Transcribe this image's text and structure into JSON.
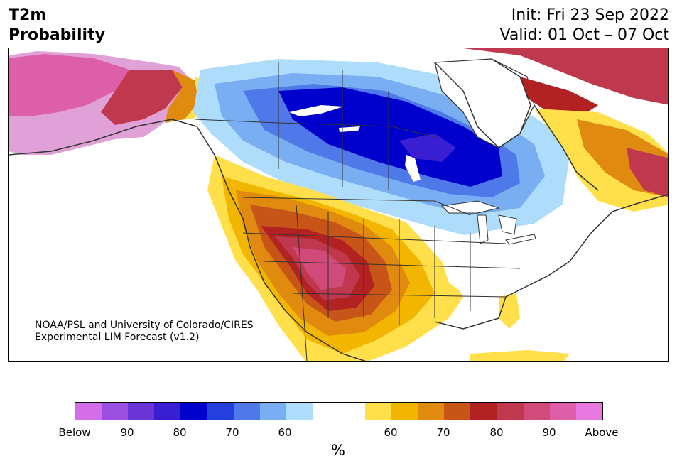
{
  "title": {
    "left_line1": "T2m",
    "left_line2": "Probability",
    "init": "Init: Fri 23 Sep 2022",
    "valid": "Valid: 01 Oct – 07 Oct"
  },
  "credit": {
    "line1": "NOAA/PSL and University of Colorado/CIRES",
    "line2": "Experimental LIM Forecast (v1.2)"
  },
  "colorbar": {
    "unit": "%",
    "colors": [
      "#d46ee8",
      "#9a4fe0",
      "#6a35d6",
      "#3a1fd2",
      "#0000cc",
      "#2540dc",
      "#4f78e8",
      "#79aef2",
      "#aedcfb",
      "#ffffff",
      "#ffffff",
      "#ffe04a",
      "#f2b600",
      "#e08a10",
      "#c85518",
      "#b22222",
      "#c0384e",
      "#d04a7a",
      "#dc5fa8",
      "#e878e0"
    ],
    "tick_labels": [
      "Below",
      "90",
      "80",
      "70",
      "60",
      "60",
      "70",
      "80",
      "90",
      "Above"
    ]
  },
  "map": {
    "region": "North America",
    "colors": {
      "above_high": "#dc5fa8",
      "above_mid": "#b22222",
      "above_low": "#f2b600",
      "below_high": "#0000cc",
      "below_low": "#aedcfb",
      "outline": "#333333"
    }
  }
}
